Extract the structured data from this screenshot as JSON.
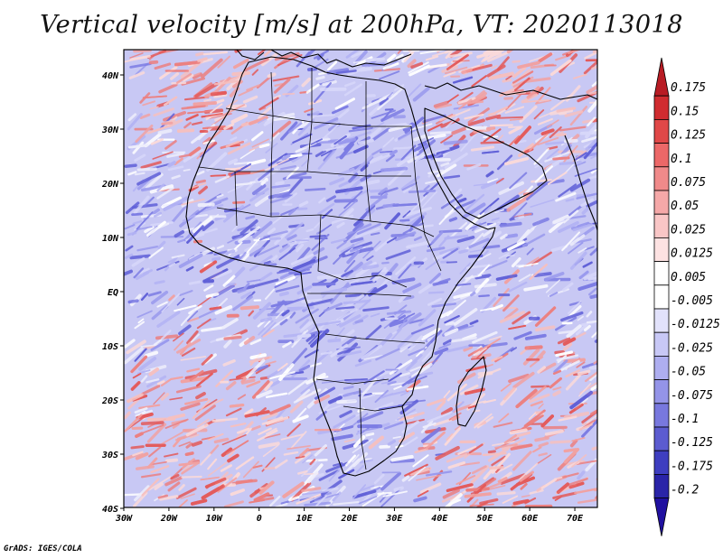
{
  "title": "Vertical velocity [m/s] at 200hPa, VT: 2020113018",
  "credit": "GrADS: IGES/COLA",
  "map": {
    "lon_range": [
      -30,
      75
    ],
    "lat_range": [
      -40,
      45
    ],
    "x_ticks": [
      "30W",
      "20W",
      "10W",
      "0",
      "10E",
      "20E",
      "30E",
      "40E",
      "50E",
      "60E",
      "70E"
    ],
    "y_ticks": [
      "40N",
      "30N",
      "20N",
      "10N",
      "EQ",
      "10S",
      "20S",
      "30S",
      "40S"
    ]
  },
  "colorbar": {
    "labels": [
      "0.175",
      "0.15",
      "0.125",
      "0.1",
      "0.075",
      "0.05",
      "0.025",
      "0.0125",
      "0.005",
      "-0.005",
      "-0.0125",
      "-0.025",
      "-0.05",
      "-0.075",
      "-0.1",
      "-0.125",
      "-0.175",
      "-0.2"
    ],
    "colors": [
      "#b81c24",
      "#d02c30",
      "#e04848",
      "#ec6868",
      "#f08a8a",
      "#f5a8a8",
      "#f9c6c6",
      "#fde2e2",
      "#ffffff",
      "#ffffff",
      "#e2e2fb",
      "#c8c8f6",
      "#aeaef0",
      "#9494e8",
      "#7878de",
      "#5c5cd0",
      "#3e3ec0",
      "#2a24a8",
      "#2010a0"
    ]
  },
  "colors": {
    "positive": "#e8606a",
    "negative": "#6464e0",
    "background_field": "#c8c8f4",
    "coastline": "#000000"
  }
}
